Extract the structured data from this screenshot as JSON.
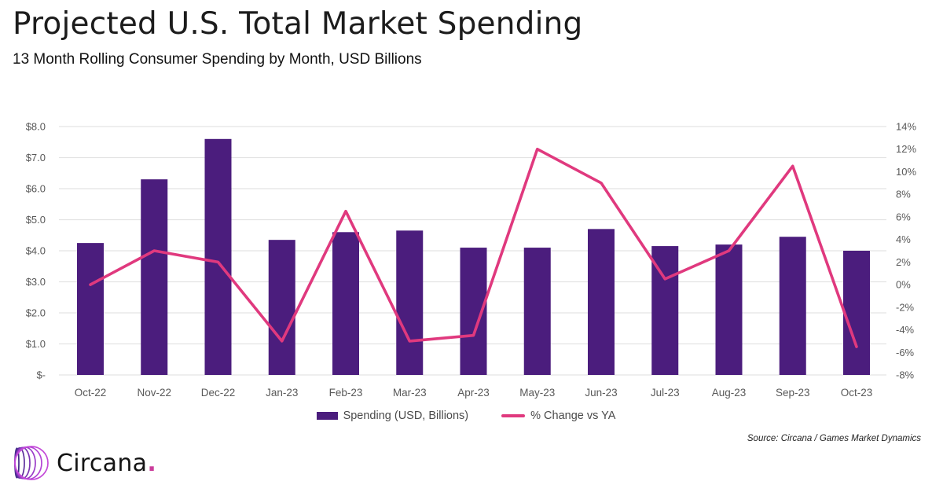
{
  "header": {
    "title": "Projected U.S. Total Market Spending",
    "subtitle": "13 Month Rolling Consumer Spending by Month, USD Billions"
  },
  "chart_data": {
    "type": "bar",
    "title": "Projected U.S. Total Market Spending",
    "subtitle": "13 Month Rolling Consumer Spending by Month, USD Billions",
    "categories": [
      "Oct-22",
      "Nov-22",
      "Dec-22",
      "Jan-23",
      "Feb-23",
      "Mar-23",
      "Apr-23",
      "May-23",
      "Jun-23",
      "Jul-23",
      "Aug-23",
      "Sep-23",
      "Oct-23"
    ],
    "series": [
      {
        "name": "Spending (USD, Billions)",
        "type": "bar",
        "axis": "left",
        "color": "#4B1D7D",
        "values": [
          4.25,
          6.3,
          7.6,
          4.35,
          4.6,
          4.65,
          4.1,
          4.1,
          4.7,
          4.15,
          4.2,
          4.45,
          4.0
        ]
      },
      {
        "name": "% Change vs YA",
        "type": "line",
        "axis": "right",
        "color": "#E0397E",
        "values": [
          0,
          3,
          2,
          -5,
          6.5,
          -5,
          -4.5,
          12,
          9,
          0.5,
          3,
          10.5,
          -5.5
        ]
      }
    ],
    "left_axis": {
      "min": 0,
      "max": 8,
      "tick_labels": [
        "$8.0",
        "$7.0",
        "$6.0",
        "$5.0",
        "$4.0",
        "$3.0",
        "$2.0",
        "$1.0",
        "$-"
      ]
    },
    "right_axis": {
      "min": -8,
      "max": 14,
      "tick_labels": [
        "14%",
        "12%",
        "10%",
        "8%",
        "6%",
        "4%",
        "2%",
        "0%",
        "-2%",
        "-4%",
        "-6%",
        "-8%"
      ]
    },
    "grid": "horizontal",
    "legend_position": "bottom",
    "gridline_color": "#e3e3e3",
    "tick_color": "#595959"
  },
  "legend": {
    "items": [
      {
        "label": "Spending (USD, Billions)",
        "color": "#4B1D7D",
        "marker": "bar"
      },
      {
        "label": "% Change vs YA",
        "color": "#E0397E",
        "marker": "line"
      }
    ]
  },
  "footer": {
    "source": "Source: Circana / Games Market Dynamics",
    "logo_text": "Circana",
    "logo_dot": ".",
    "logo_dot_color": "#cb3d9b",
    "logo_ring_colors": [
      "#3f2a86",
      "#5c2f9b",
      "#7c35b4",
      "#9a3cc8",
      "#b344d6",
      "#c44ad8"
    ]
  }
}
